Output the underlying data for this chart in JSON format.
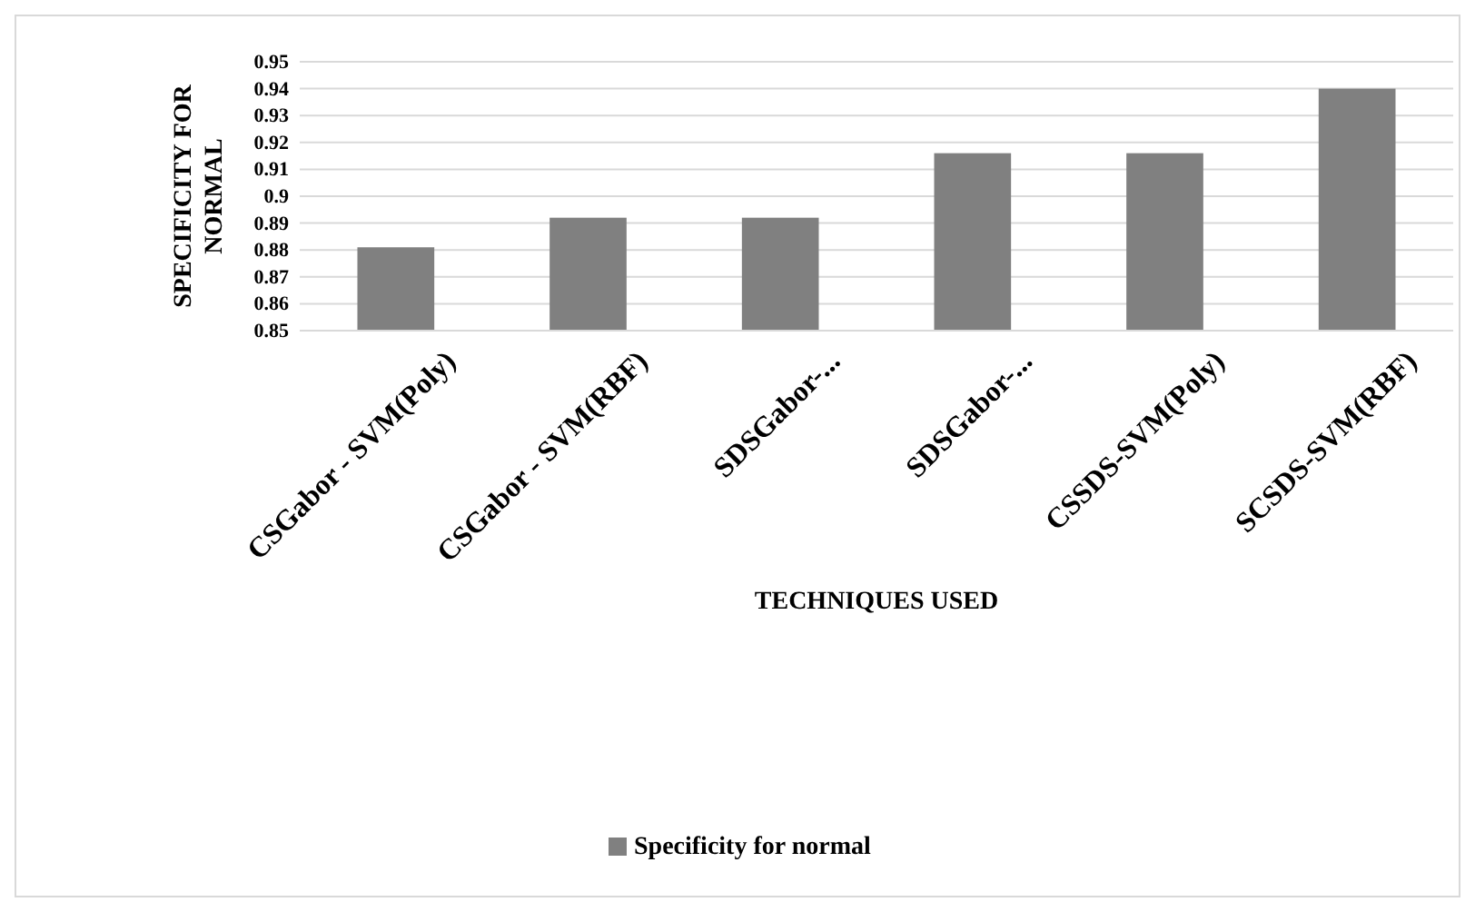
{
  "chart_data": {
    "type": "bar",
    "xlabel": "TECHNIQUES USED",
    "ylabel": "SPECIFICITY FOR NORMAL",
    "categories": [
      "CSGabor - SVM(Poly)",
      "CSGabor - SVM(RBF)",
      "SDSGabor-...",
      "SDSGabor-...",
      "CSSDS-SVM(Poly)",
      "SCSDS-SVM(RBF)"
    ],
    "series": [
      {
        "name": "Specificity for normal",
        "color": "#808080",
        "values": [
          0.881,
          0.892,
          0.892,
          0.916,
          0.916,
          0.94
        ]
      }
    ],
    "ylim": [
      0.85,
      0.95
    ],
    "yticks": [
      0.85,
      0.86,
      0.87,
      0.88,
      0.89,
      0.9,
      0.91,
      0.92,
      0.93,
      0.94,
      0.95
    ],
    "grid": "y",
    "legend": "bottom"
  }
}
